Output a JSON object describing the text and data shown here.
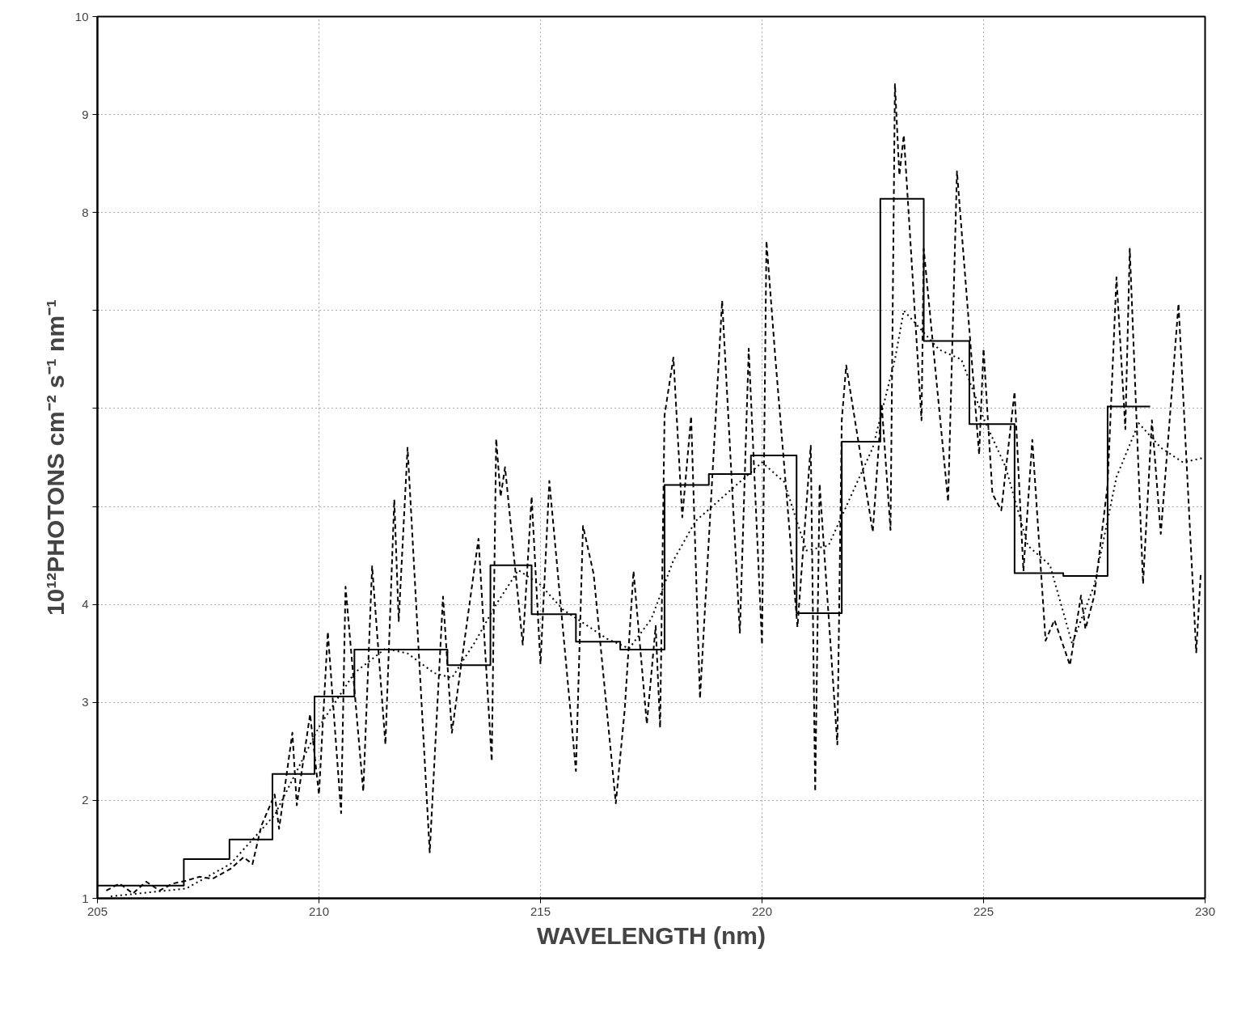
{
  "chart_data": {
    "type": "line",
    "xlabel": "WAVELENGTH (nm)",
    "ylabel": "10¹²PHOTONS cm⁻² s⁻¹ nm⁻¹",
    "xlim": [
      205,
      230
    ],
    "ylim": [
      1,
      10
    ],
    "xticks": [
      205,
      210,
      215,
      220,
      225,
      230
    ],
    "yticks": [
      1,
      2,
      3,
      4,
      {
        "value": 5,
        "label": null
      },
      {
        "value": 6,
        "label": null
      },
      {
        "value": 7,
        "label": null
      },
      8,
      9,
      10
    ],
    "grid": true,
    "marker": "none",
    "series": [
      {
        "type": "step",
        "color": "#000000",
        "line_style": "solid",
        "x": [
          205,
          206.95,
          207.98,
          208.95,
          209.9,
          210.8,
          212.9,
          213.87,
          214.8,
          215.8,
          216.8,
          217.8,
          218.8,
          219.75,
          220.78,
          221.8,
          222.67,
          223.65,
          224.68,
          225.7,
          226.8,
          227.8,
          228.76
        ],
        "values": [
          1.13,
          1.4,
          1.6,
          2.27,
          3.06,
          3.54,
          3.38,
          4.4,
          3.9,
          3.62,
          3.54,
          5.22,
          5.33,
          5.52,
          3.91,
          5.66,
          8.14,
          6.69,
          5.84,
          4.32,
          4.29,
          6.02,
          6.02
        ]
      },
      {
        "color": "#000000",
        "line_style": "dashed",
        "x": [
          205.2,
          205.5,
          205.8,
          206.1,
          206.4,
          206.7,
          207.0,
          207.3,
          207.6,
          208.0,
          208.3,
          208.5,
          208.7,
          209.0,
          209.1,
          209.4,
          209.5,
          209.8,
          210.0,
          210.2,
          210.5,
          210.6,
          211.0,
          211.2,
          211.5,
          211.7,
          211.8,
          212.0,
          212.5,
          212.8,
          213.0,
          213.6,
          213.9,
          214.0,
          214.1,
          214.2,
          214.6,
          214.8,
          215.0,
          215.2,
          215.8,
          215.96,
          216.2,
          216.7,
          216.9,
          217.1,
          217.4,
          217.6,
          217.7,
          217.8,
          218.0,
          218.2,
          218.4,
          218.6,
          219.1,
          219.5,
          219.7,
          220.0,
          220.1,
          220.3,
          220.8,
          221.1,
          221.2,
          221.3,
          221.7,
          221.8,
          221.9,
          222.5,
          222.7,
          222.9,
          223.0,
          223.1,
          223.2,
          223.6,
          223.65,
          224.2,
          224.4,
          224.9,
          225.0,
          225.2,
          225.4,
          225.7,
          225.9,
          226.1,
          226.4,
          226.6,
          226.95,
          227.2,
          227.3,
          227.5,
          227.8,
          228.0,
          228.2,
          228.3,
          228.6,
          228.8,
          229.0,
          229.2,
          229.4,
          229.8,
          229.9
        ],
        "values": [
          1.08,
          1.15,
          1.05,
          1.17,
          1.08,
          1.15,
          1.18,
          1.22,
          1.2,
          1.3,
          1.42,
          1.35,
          1.74,
          2.06,
          1.71,
          2.69,
          1.95,
          2.88,
          2.06,
          3.72,
          1.87,
          4.18,
          2.09,
          4.39,
          2.57,
          5.07,
          3.83,
          5.6,
          1.47,
          4.08,
          2.69,
          4.67,
          2.4,
          5.69,
          5.1,
          5.4,
          3.59,
          5.1,
          3.39,
          5.26,
          2.3,
          4.8,
          4.31,
          1.97,
          2.92,
          4.34,
          2.78,
          3.78,
          2.74,
          5.93,
          6.52,
          4.89,
          5.92,
          3.04,
          7.1,
          3.71,
          6.61,
          3.59,
          7.71,
          6.52,
          3.77,
          5.62,
          2.09,
          5.23,
          2.57,
          5.88,
          6.44,
          4.74,
          6.05,
          4.76,
          9.31,
          8.38,
          8.79,
          5.88,
          7.63,
          5.05,
          8.42,
          5.53,
          6.61,
          5.13,
          4.96,
          6.17,
          4.34,
          5.68,
          3.63,
          3.84,
          3.38,
          4.09,
          3.75,
          4.09,
          5.22,
          7.34,
          5.79,
          7.63,
          4.21,
          5.88,
          4.72,
          5.88,
          7.07,
          3.51,
          4.3
        ]
      },
      {
        "color": "#000000",
        "line_style": "dotted",
        "x": [
          205.3,
          207,
          208,
          209,
          209.5,
          210,
          210.8,
          211.5,
          212,
          212.6,
          213,
          213.5,
          214,
          214.5,
          215,
          215.5,
          216,
          216.5,
          217,
          217.5,
          218,
          218.5,
          219,
          219.5,
          220,
          220.5,
          221,
          221.5,
          222,
          222.5,
          223,
          223.2,
          224,
          224.5,
          225,
          225.5,
          226,
          226.5,
          227,
          227.5,
          228,
          228.5,
          229,
          229.5,
          230
        ],
        "values": [
          1.02,
          1.1,
          1.35,
          1.85,
          2.3,
          2.75,
          3.3,
          3.55,
          3.5,
          3.3,
          3.25,
          3.6,
          4.0,
          4.35,
          4.2,
          3.95,
          3.8,
          3.65,
          3.55,
          3.85,
          4.45,
          4.85,
          5.05,
          5.25,
          5.45,
          5.25,
          4.55,
          4.6,
          5.1,
          5.6,
          6.5,
          7.0,
          6.6,
          6.5,
          5.9,
          5.4,
          4.6,
          4.4,
          3.6,
          4.2,
          5.3,
          5.85,
          5.6,
          5.45,
          5.5
        ]
      }
    ]
  }
}
